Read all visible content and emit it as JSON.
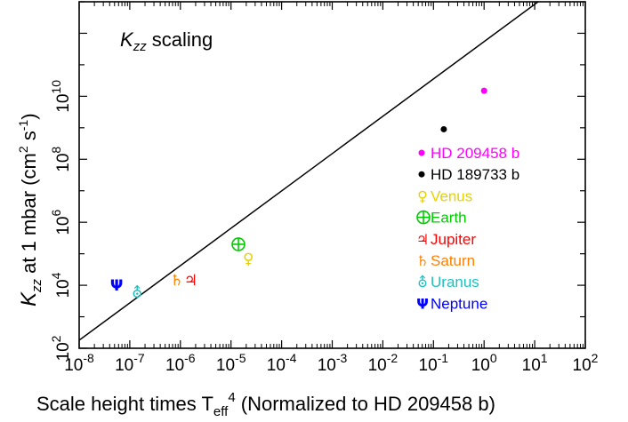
{
  "chart_data": {
    "type": "scatter",
    "title": "K",
    "title_sub": "zz",
    "title_suffix": " scaling",
    "xlabel": "Scale height times T",
    "xlabel_sub": "eff",
    "xlabel_sup": "4",
    "xlabel_suffix": " (Normalized to HD 209458 b)",
    "ylabel_k": "K",
    "ylabel_sub": "zz",
    "ylabel_rest": "  at 1 mbar (cm",
    "ylabel_sup1": "2",
    "ylabel_mid": " s",
    "ylabel_sup2": "-1",
    "ylabel_end": ")",
    "x_scale": "log",
    "y_scale": "log",
    "xlim": [
      1e-08,
      100
    ],
    "ylim": [
      100,
      10000000000000
    ],
    "x_ticks": [
      {
        "exp": "-8",
        "value": 1e-08
      },
      {
        "exp": "-7",
        "value": 1e-07
      },
      {
        "exp": "-6",
        "value": 1e-06
      },
      {
        "exp": "-5",
        "value": 1e-05
      },
      {
        "exp": "-4",
        "value": 0.0001
      },
      {
        "exp": "-3",
        "value": 0.001
      },
      {
        "exp": "-2",
        "value": 0.01
      },
      {
        "exp": "-1",
        "value": 0.1
      },
      {
        "exp": "0",
        "value": 1
      },
      {
        "exp": "1",
        "value": 10
      },
      {
        "exp": "2",
        "value": 100
      }
    ],
    "y_ticks": [
      {
        "exp": "2",
        "value": 100
      },
      {
        "exp": "4",
        "value": 10000
      },
      {
        "exp": "6",
        "value": 1000000
      },
      {
        "exp": "8",
        "value": 100000000
      },
      {
        "exp": "10",
        "value": 10000000000
      }
    ],
    "fit_line": {
      "x": [
        1e-08,
        21
      ],
      "y": [
        180,
        20000000000000
      ]
    },
    "points": [
      {
        "name": "HD 209458 b",
        "symbol": "●",
        "x": 1.0,
        "y": 15000000000,
        "color": "#ff00ff"
      },
      {
        "name": "HD 189733 b",
        "symbol": "●",
        "x": 0.16,
        "y": 900000000,
        "color": "#000000"
      },
      {
        "name": "Venus",
        "symbol": "♀",
        "x": 2.2e-05,
        "y": 70000,
        "color": "#e6d200"
      },
      {
        "name": "Earth",
        "symbol": "⊕",
        "x": 1.4e-05,
        "y": 200000,
        "color": "#00cc00"
      },
      {
        "name": "Jupiter",
        "symbol": "♃",
        "x": 1.6e-06,
        "y": 15000,
        "color": "#ff0000"
      },
      {
        "name": "Saturn",
        "symbol": "♄",
        "x": 8.5e-07,
        "y": 15000,
        "color": "#ff8000"
      },
      {
        "name": "Uranus",
        "symbol": "⛢",
        "x": 1.4e-07,
        "y": 6000,
        "color": "#20c0c0"
      },
      {
        "name": "Neptune",
        "symbol": "Ψ",
        "x": 5.5e-08,
        "y": 10000,
        "color": "#0000ff"
      }
    ],
    "legend_position": "right"
  }
}
